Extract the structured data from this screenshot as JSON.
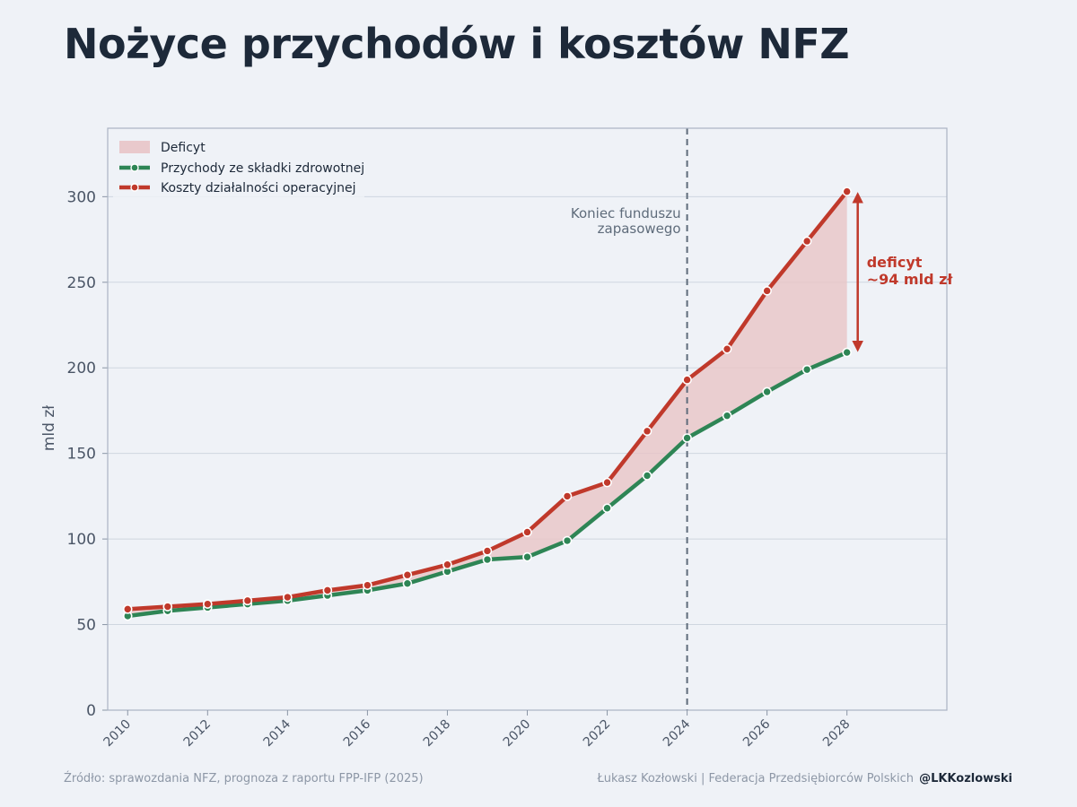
{
  "title": "Nożyce przychodów i kosztów NFZ",
  "footer": {
    "source": "Źródło: sprawozdania NFZ, prognoza z raportu FPP-IFP (2025)",
    "credit": "Łukasz Kozłowski | Federacja Przedsiębiorców Polskich",
    "handle": "@LKKozlowski"
  },
  "chart_data": {
    "type": "line",
    "ylabel": "mld zł",
    "xlabel": "",
    "xlim": [
      2009.5,
      2030.5
    ],
    "ylim": [
      0,
      340
    ],
    "yticks": [
      0,
      50,
      100,
      150,
      200,
      250,
      300
    ],
    "xticks": [
      2010,
      2012,
      2014,
      2016,
      2018,
      2020,
      2022,
      2024,
      2026,
      2028
    ],
    "grid": true,
    "legend_position": "top-left",
    "x": [
      2010,
      2011,
      2012,
      2013,
      2014,
      2015,
      2016,
      2017,
      2018,
      2019,
      2020,
      2021,
      2022,
      2023,
      2024,
      2025,
      2026,
      2027,
      2028
    ],
    "series": [
      {
        "name": "Przychody ze składki zdrowotnej",
        "color": "#2e8555",
        "values": [
          55,
          58,
          60,
          62,
          64,
          67,
          70,
          74,
          81,
          88,
          89.5,
          99,
          118,
          137,
          159,
          172,
          186,
          199,
          209
        ]
      },
      {
        "name": "Koszty działalności operacyjnej",
        "color": "#c0392b",
        "values": [
          59,
          60.5,
          62,
          64,
          66,
          70,
          73,
          79,
          85,
          93,
          104,
          125,
          133,
          163,
          193,
          211,
          245,
          274,
          303
        ]
      }
    ],
    "fill": {
      "name": "Deficyt",
      "color": "#e8c4c6"
    },
    "vline": {
      "x": 2024,
      "label_lines": [
        "Koniec funduszu",
        "zapasowego"
      ]
    },
    "annotation": {
      "x": 2028,
      "y_from": 209,
      "y_to": 303,
      "lines": [
        "deficyt",
        "~94 mld zł"
      ],
      "color": "#c0392b"
    }
  }
}
